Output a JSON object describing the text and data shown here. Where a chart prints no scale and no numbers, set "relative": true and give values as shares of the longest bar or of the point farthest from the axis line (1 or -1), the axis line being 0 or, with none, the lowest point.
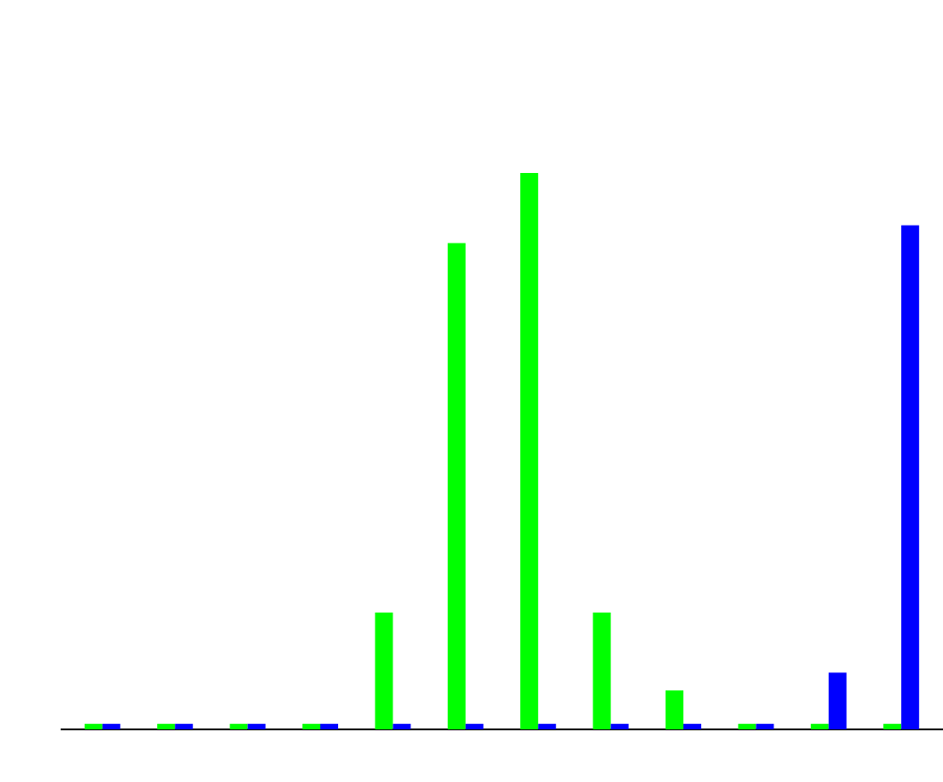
{
  "chart_data": {
    "type": "bar",
    "relative": true,
    "categories": [
      null,
      null,
      null,
      null,
      null,
      null,
      null,
      null,
      null,
      null,
      null,
      null
    ],
    "series": [
      {
        "color": "#00ff00",
        "values": [
          0.01,
          0.01,
          0.01,
          0.01,
          0.21,
          0.874,
          1,
          0.21,
          0.07,
          0.01,
          0.01,
          0.01
        ]
      },
      {
        "color": "#0000ff",
        "values": [
          0.01,
          0.01,
          0.01,
          0.01,
          0.01,
          0.01,
          0.01,
          0.01,
          0.01,
          0.01,
          0.102,
          0.906
        ]
      }
    ]
  }
}
